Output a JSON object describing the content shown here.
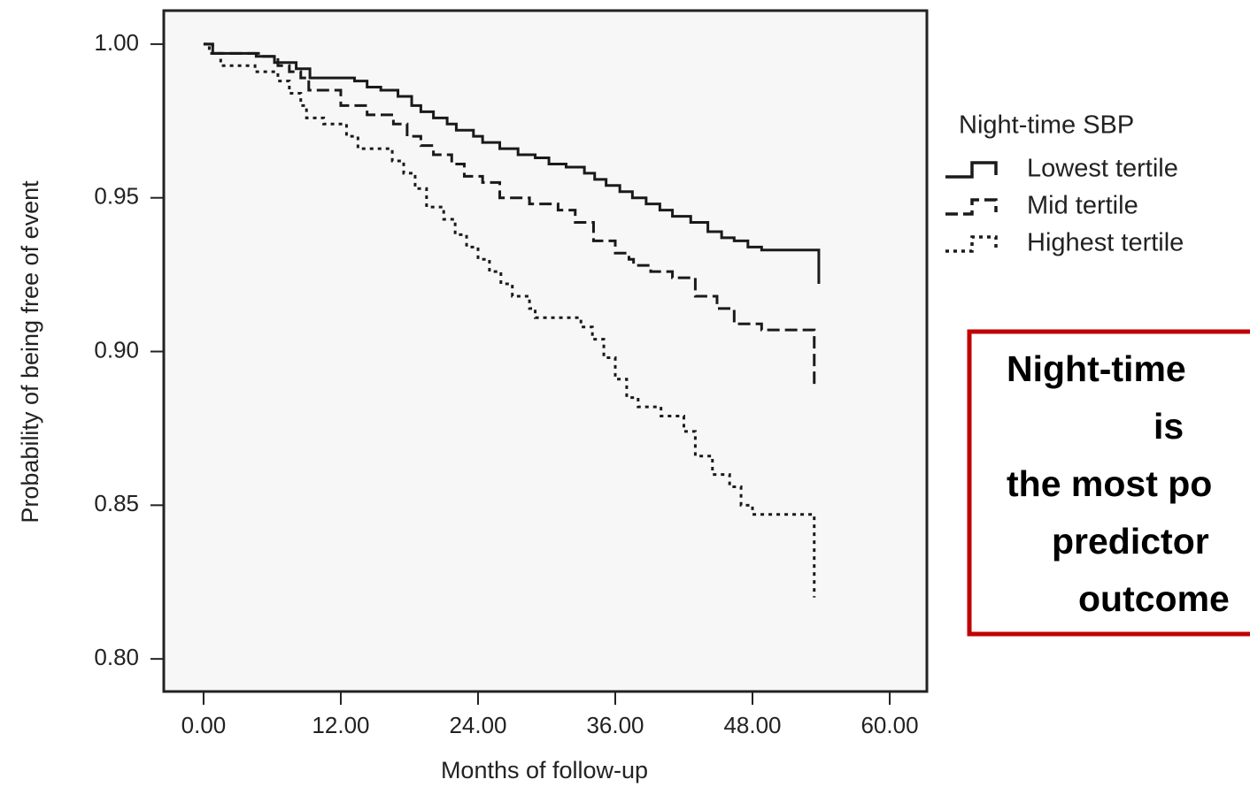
{
  "chart_data": {
    "type": "step",
    "x_label": "Months of follow-up",
    "y_label": "Probability of being free of event",
    "xlim": [
      -3.48,
      63.25
    ],
    "ylim": [
      0.7894,
      1.0109
    ],
    "xticks": [
      {
        "value": 0,
        "label": "0.00"
      },
      {
        "value": 12,
        "label": "12.00"
      },
      {
        "value": 24,
        "label": "24.00"
      },
      {
        "value": 36,
        "label": "36.00"
      },
      {
        "value": 48,
        "label": "48.00"
      },
      {
        "value": 60,
        "label": "60.00"
      }
    ],
    "yticks": [
      {
        "value": 1,
        "label": "1.00"
      },
      0.95,
      {
        "value": 0.9,
        "label": "0.90"
      },
      0.85,
      {
        "value": 0.8,
        "label": "0.80"
      }
    ],
    "legend_title": "Night-time SBP",
    "legend_position": "right",
    "series": [
      {
        "name": "Lowest tertile",
        "color": "#1a1a1a",
        "dash": "solid",
        "x": [
          0,
          0.8,
          4.6,
          6.2,
          8.1,
          9.3,
          13.2,
          14.3,
          15.5,
          17.0,
          18.2,
          19.0,
          20.1,
          21.3,
          22.1,
          23.6,
          24.4,
          25.9,
          27.5,
          29.0,
          30.2,
          31.7,
          33.3,
          34.2,
          35.2,
          36.4,
          37.5,
          38.7,
          39.9,
          41.0,
          42.6,
          44.1,
          45.3,
          46.4,
          47.6,
          48.8,
          53.8
        ],
        "values": [
          1.0,
          0.997,
          0.996,
          0.994,
          0.992,
          0.989,
          0.988,
          0.986,
          0.985,
          0.983,
          0.98,
          0.978,
          0.976,
          0.974,
          0.972,
          0.97,
          0.968,
          0.966,
          0.964,
          0.963,
          0.961,
          0.96,
          0.958,
          0.956,
          0.954,
          0.952,
          0.95,
          0.948,
          0.946,
          0.944,
          0.942,
          0.939,
          0.937,
          0.936,
          0.934,
          0.933,
          0.922
        ]
      },
      {
        "name": "Mid tertile",
        "color": "#1a1a1a",
        "dash": "dashed",
        "x": [
          0,
          0.8,
          5.0,
          6.5,
          7.5,
          8.5,
          9.2,
          12.0,
          14.3,
          16.6,
          17.8,
          19.0,
          20.1,
          21.7,
          22.8,
          24.4,
          25.9,
          28.5,
          31.0,
          32.5,
          34.1,
          36.0,
          37.2,
          37.6,
          39.1,
          41.0,
          43.0,
          44.9,
          46.4,
          48.8,
          53.4
        ],
        "values": [
          1.0,
          0.997,
          0.996,
          0.993,
          0.991,
          0.989,
          0.985,
          0.98,
          0.977,
          0.974,
          0.97,
          0.967,
          0.964,
          0.961,
          0.957,
          0.955,
          0.95,
          0.948,
          0.946,
          0.942,
          0.936,
          0.932,
          0.93,
          0.928,
          0.926,
          0.924,
          0.918,
          0.914,
          0.909,
          0.907,
          0.889
        ]
      },
      {
        "name": "Highest tertile",
        "color": "#1a1a1a",
        "dash": "dotted",
        "x": [
          0,
          0.5,
          1.5,
          4.5,
          6.5,
          7.5,
          8.5,
          9.0,
          10.5,
          12.5,
          13.5,
          16.5,
          17.5,
          18.5,
          19.5,
          21.0,
          22.0,
          23.0,
          24.0,
          25.0,
          26.0,
          27.0,
          28.5,
          29.0,
          33.0,
          34.0,
          35.0,
          36.0,
          37.0,
          38.0,
          40.0,
          42.0,
          43.0,
          44.5,
          46.0,
          47.0,
          48.0,
          53.4
        ],
        "values": [
          1.0,
          0.997,
          0.993,
          0.991,
          0.988,
          0.984,
          0.98,
          0.976,
          0.974,
          0.97,
          0.966,
          0.962,
          0.958,
          0.953,
          0.947,
          0.943,
          0.938,
          0.934,
          0.93,
          0.926,
          0.922,
          0.918,
          0.914,
          0.911,
          0.908,
          0.904,
          0.898,
          0.891,
          0.885,
          0.882,
          0.879,
          0.874,
          0.866,
          0.86,
          0.856,
          0.85,
          0.847,
          0.82
        ]
      }
    ],
    "annotation": {
      "lines": [
        "Night-time",
        "is",
        "the most po",
        "predictor",
        "outcome"
      ],
      "border_color": "#c00000"
    }
  }
}
